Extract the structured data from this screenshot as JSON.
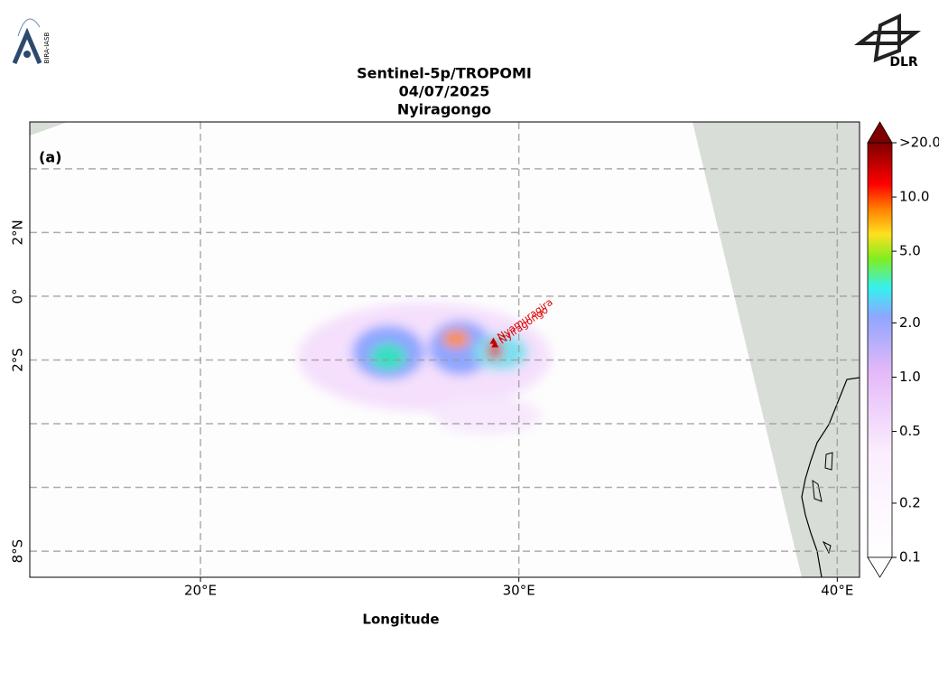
{
  "chart_data": {
    "type": "map",
    "title": [
      "Sentinel-5p/TROPOMI",
      "04/07/2025",
      "Nyiragongo"
    ],
    "panel_label": "(a)",
    "xlabel": "Longitude",
    "logos": {
      "left": "BIRA-IASB",
      "right": "DLR"
    },
    "xlim": [
      14.64,
      40.7
    ],
    "ylim": [
      -8.82,
      5.47
    ],
    "xticks": [
      {
        "value": 20,
        "label": "20°E"
      },
      {
        "value": 30,
        "label": "30°E"
      },
      {
        "value": 40,
        "label": "40°E"
      }
    ],
    "yticks": [
      {
        "value": 2,
        "label": "2°N"
      },
      {
        "value": 0,
        "label": "0°"
      },
      {
        "value": -2,
        "label": "2°S"
      },
      {
        "value": -8,
        "label": "8°S"
      }
    ],
    "ygrid": [
      4,
      -4,
      -6
    ],
    "grid": true,
    "volcanoes": [
      {
        "name": "Nyamuragira",
        "lon": 29.2,
        "lat": -1.41
      },
      {
        "name": "Nyiragongo",
        "lon": 29.25,
        "lat": -1.52
      }
    ],
    "colorbar": {
      "log": true,
      "lim": [
        0.1,
        20
      ],
      "ticks": [
        {
          "value": 0.1,
          "label": "0.1"
        },
        {
          "value": 0.2,
          "label": "0.2"
        },
        {
          "value": 0.5,
          "label": "0.5"
        },
        {
          "value": 1,
          "label": "1.0"
        },
        {
          "value": 2,
          "label": "2.0"
        },
        {
          "value": 5,
          "label": "5.0"
        },
        {
          "value": 10,
          "label": "10.0"
        },
        {
          "value": 20,
          "label": ">20.0"
        }
      ]
    }
  }
}
